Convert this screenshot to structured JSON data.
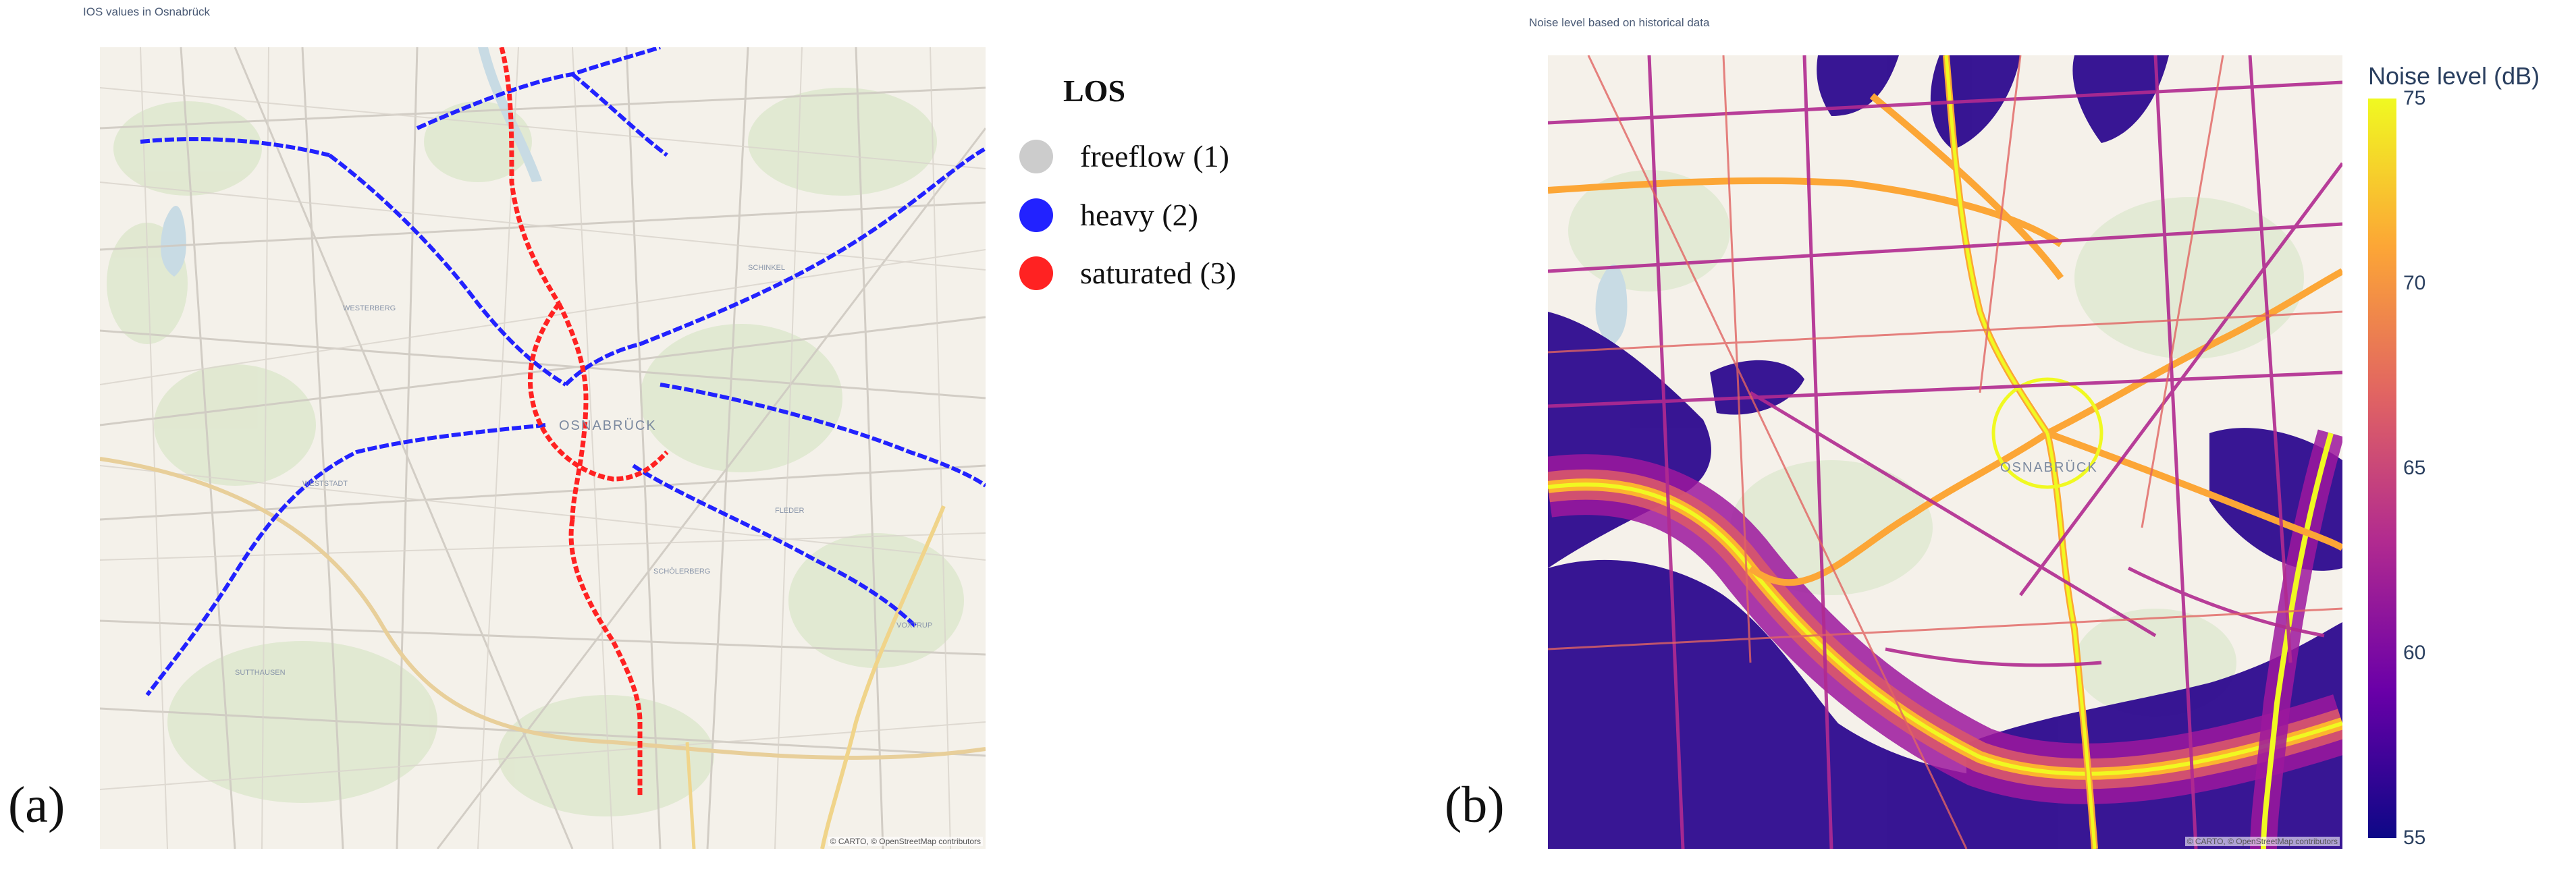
{
  "panel_a": {
    "title": "IOS values in Osnabrück",
    "letter": "(a)",
    "attribution": "© CARTO, © OpenStreetMap contributors",
    "city_label": "OSNABRÜCK",
    "legend": {
      "title": "LOS",
      "items": [
        {
          "label": "freeflow (1)",
          "color": "#cccccc"
        },
        {
          "label": "heavy (2)",
          "color": "#2222ff"
        },
        {
          "label": "saturated (3)",
          "color": "#ff2222"
        }
      ]
    }
  },
  "panel_b": {
    "title": "Noise level based on historical data",
    "letter": "(b)",
    "attribution": "© CARTO, © OpenStreetMap contributors",
    "city_label": "OSNABRÜCK",
    "colorbar": {
      "title": "Noise level (dB)",
      "min": 55,
      "max": 75,
      "ticks": [
        "75",
        "70",
        "65",
        "60",
        "55"
      ],
      "colors": [
        "#0d0887",
        "#6a00a8",
        "#b12a90",
        "#e16462",
        "#fca636",
        "#f0f921"
      ]
    }
  }
}
